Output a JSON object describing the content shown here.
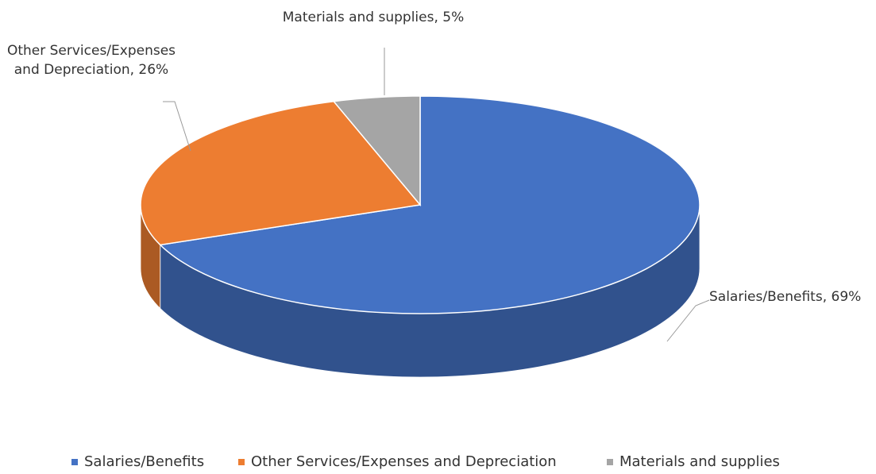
{
  "chart_data": {
    "type": "pie",
    "categories": [
      "Salaries/Benefits",
      "Other Services/Expenses and Depreciation",
      "Materials and supplies"
    ],
    "values": [
      69,
      26,
      5
    ],
    "value_labels": [
      "Salaries/Benefits, 69%",
      "Other Services/Expenses and Depreciation, 26%",
      "Materials and supplies, 5%"
    ],
    "colors": [
      "#4472c4",
      "#ed7d31",
      "#a5a5a5"
    ],
    "legend": "bottom"
  }
}
